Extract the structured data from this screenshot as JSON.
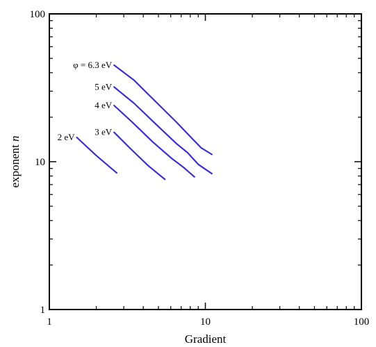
{
  "chart_data": {
    "type": "line",
    "xlabel": "Gradient",
    "ylabel": {
      "prefix": "exponent ",
      "var": "n"
    },
    "xscale": "log",
    "yscale": "log",
    "xlim": [
      1,
      100
    ],
    "ylim": [
      1,
      100
    ],
    "grid": false,
    "line_color": "#3a2fd6",
    "x_tick_labels": [
      {
        "value": 1,
        "label": "1"
      },
      {
        "value": 10,
        "label": "10"
      },
      {
        "value": 100,
        "label": "100"
      }
    ],
    "y_tick_labels": [
      {
        "value": 1,
        "label": "1"
      },
      {
        "value": 10,
        "label": "10"
      },
      {
        "value": 100,
        "label": "100"
      }
    ],
    "series": [
      {
        "name": "φ = 6.3 eV",
        "x": [
          2.6,
          3.5,
          4.8,
          6.5,
          7.8,
          9.4,
          11.0
        ],
        "y": [
          45.0,
          35.5,
          25.5,
          18.6,
          15.2,
          12.4,
          11.2
        ]
      },
      {
        "name": "5 eV",
        "x": [
          2.6,
          3.5,
          4.8,
          6.5,
          7.7,
          9.0,
          11.0
        ],
        "y": [
          32.0,
          24.8,
          18.0,
          13.3,
          11.5,
          9.6,
          8.3
        ]
      },
      {
        "name": "4 eV",
        "x": [
          2.6,
          3.4,
          4.6,
          6.1,
          7.2,
          8.5
        ],
        "y": [
          24.0,
          18.5,
          13.6,
          10.5,
          9.2,
          7.9
        ]
      },
      {
        "name": "3 eV",
        "x": [
          2.6,
          3.3,
          4.3,
          5.5
        ],
        "y": [
          15.8,
          12.3,
          9.4,
          7.6
        ]
      },
      {
        "name": "2 eV",
        "x": [
          1.5,
          2.0,
          2.7
        ],
        "y": [
          14.6,
          11.0,
          8.4
        ]
      }
    ]
  }
}
